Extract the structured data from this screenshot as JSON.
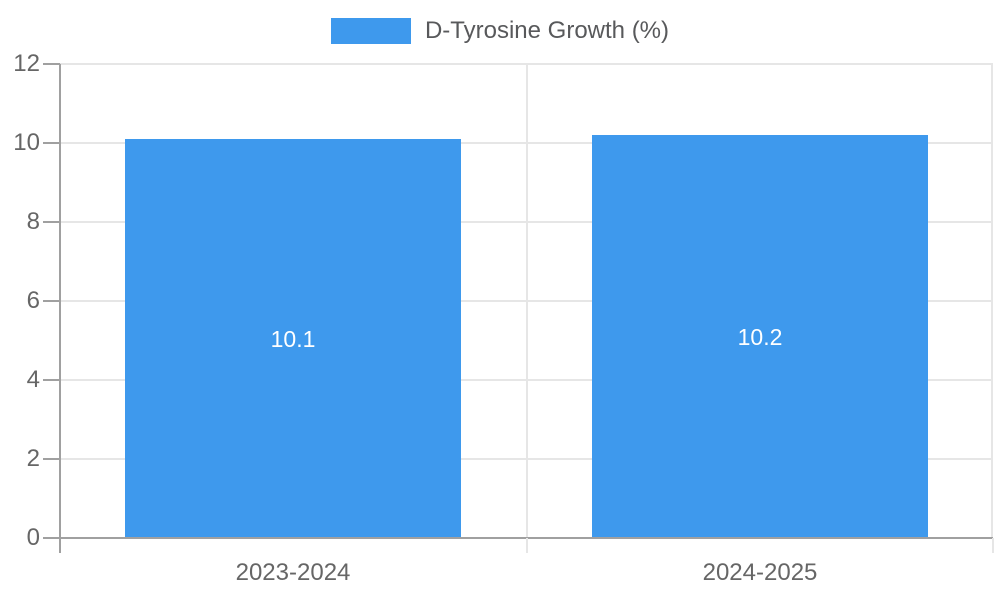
{
  "chart_data": {
    "type": "bar",
    "title": "D-Tyrosine Growth (%)",
    "categories": [
      "2023-2024",
      "2024-2025"
    ],
    "values": [
      10.1,
      10.2
    ],
    "value_labels": [
      "10.1",
      "10.2"
    ],
    "ylim": [
      0,
      12
    ],
    "y_ticks": [
      0,
      2,
      4,
      6,
      8,
      10,
      12
    ],
    "grid": true,
    "legend_position": "top-center",
    "legend_entries": [
      "D-Tyrosine Growth (%)"
    ]
  },
  "legend": {
    "label": "D-Tyrosine Growth (%)"
  },
  "colors": {
    "bar": "#3E99ED",
    "grid": "#E6E6E6",
    "axis": "#A0A0A0",
    "tick_label": "#666666",
    "legend_text": "#58595B",
    "value_label": "#FFFFFF",
    "background": "#FFFFFF"
  }
}
